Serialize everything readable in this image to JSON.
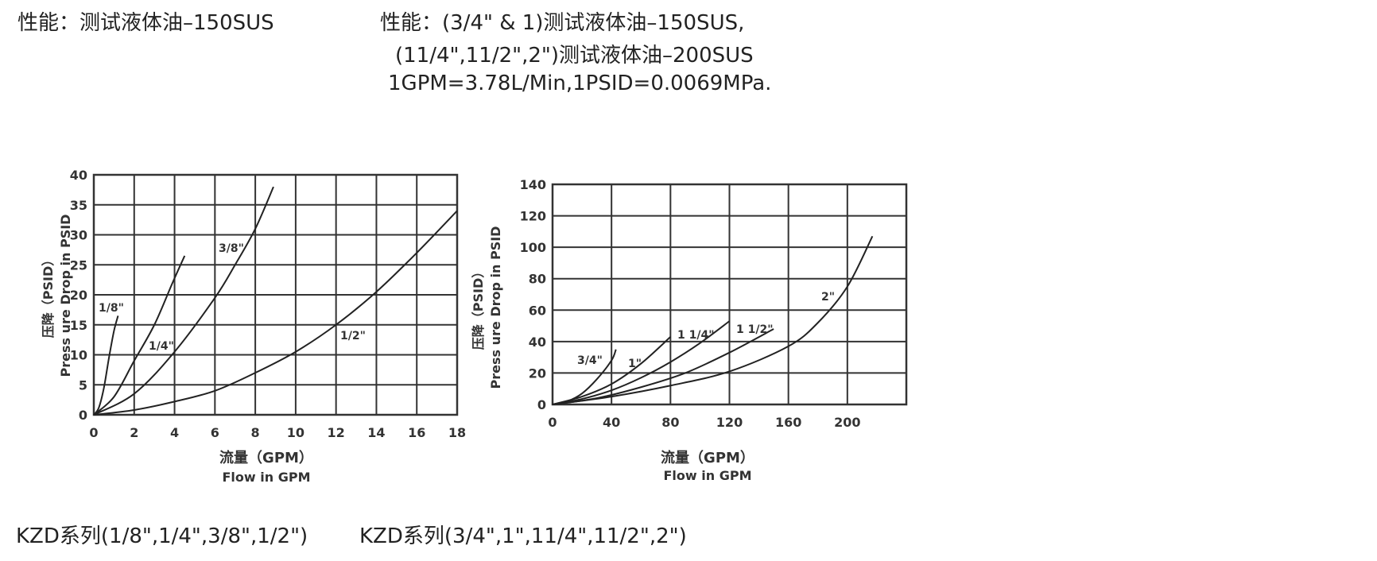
{
  "header": {
    "left": "性能：测试液体油–150SUS",
    "right_lines": [
      "性能：(3/4\" & 1)测试液体油–150SUS,",
      "(11/4\",11/2\",2\")测试液体油–200SUS",
      "1GPM=3.78L/Min,1PSID=0.0069MPa."
    ]
  },
  "captions": {
    "left": "KZD系列(1/8\",1/4\",3/8\",1/2\")",
    "right": "KZD系列(3/4\",1\",11/4\",11/2\",2\")"
  },
  "colors": {
    "line": "#222222",
    "grid": "#333333",
    "text": "#333333"
  },
  "chart_data": [
    {
      "type": "line",
      "xlabel": "流量（GPM）",
      "xlabel_sub": "Flow in GPM",
      "ylabel": "压降（PSID）",
      "ylabel_sub": "Press ure Drop in PSID",
      "xlim": [
        0,
        18
      ],
      "ylim": [
        0,
        40
      ],
      "xticks": [
        "0",
        "2",
        "4",
        "6",
        "8",
        "10",
        "12",
        "14",
        "16",
        "18"
      ],
      "yticks": [
        "0",
        "5",
        "10",
        "15",
        "20",
        "25",
        "30",
        "35",
        "40"
      ],
      "grid": true,
      "series": [
        {
          "name": "1/8\"",
          "x": [
            0,
            0.25,
            0.5,
            0.75,
            1.0,
            1.2
          ],
          "y": [
            0,
            1.2,
            4.5,
            9.5,
            14.0,
            16.5
          ]
        },
        {
          "name": "1/4\"",
          "x": [
            0,
            1,
            2,
            3,
            3.9,
            4.5
          ],
          "y": [
            0,
            3,
            9,
            15,
            22,
            26.5
          ]
        },
        {
          "name": "3/8\"",
          "x": [
            0,
            2,
            4,
            6,
            7,
            8,
            8.9
          ],
          "y": [
            0,
            3.5,
            10.5,
            19.5,
            25,
            31,
            38
          ]
        },
        {
          "name": "1/2\"",
          "x": [
            0,
            2,
            4,
            6,
            8,
            10,
            12,
            14,
            16,
            18
          ],
          "y": [
            0,
            0.8,
            2.2,
            4,
            7,
            10.5,
            15,
            20.5,
            27,
            34
          ]
        }
      ]
    },
    {
      "type": "line",
      "xlabel": "流量（GPM）",
      "xlabel_sub": "Flow in GPM",
      "ylabel": "压降（PSID）",
      "ylabel_sub": "Press ure Drop in PSID",
      "xlim": [
        0,
        240
      ],
      "ylim": [
        0,
        140
      ],
      "xticks": [
        "0",
        "40",
        "80",
        "120",
        "160",
        "200"
      ],
      "yticks": [
        "0",
        "20",
        "40",
        "60",
        "80",
        "100",
        "120",
        "140"
      ],
      "grid": true,
      "series": [
        {
          "name": "3/4\"",
          "x": [
            0,
            10,
            20,
            30,
            40,
            43
          ],
          "y": [
            0,
            2,
            7,
            16,
            28,
            35
          ]
        },
        {
          "name": "1\"",
          "x": [
            0,
            20,
            40,
            60,
            80
          ],
          "y": [
            0,
            5,
            13,
            26,
            43
          ]
        },
        {
          "name": "1 1/4\"",
          "x": [
            0,
            20,
            40,
            60,
            80,
            100,
            120
          ],
          "y": [
            0,
            3.5,
            9,
            17,
            27,
            39,
            53
          ]
        },
        {
          "name": "1 1/2\"",
          "x": [
            0,
            30,
            60,
            90,
            120,
            150
          ],
          "y": [
            0,
            4,
            11,
            20,
            33,
            48
          ]
        },
        {
          "name": "2\"",
          "x": [
            0,
            40,
            80,
            120,
            160,
            180,
            200,
            217
          ],
          "y": [
            0,
            5,
            12,
            21,
            37,
            52,
            75,
            107
          ]
        }
      ]
    }
  ]
}
